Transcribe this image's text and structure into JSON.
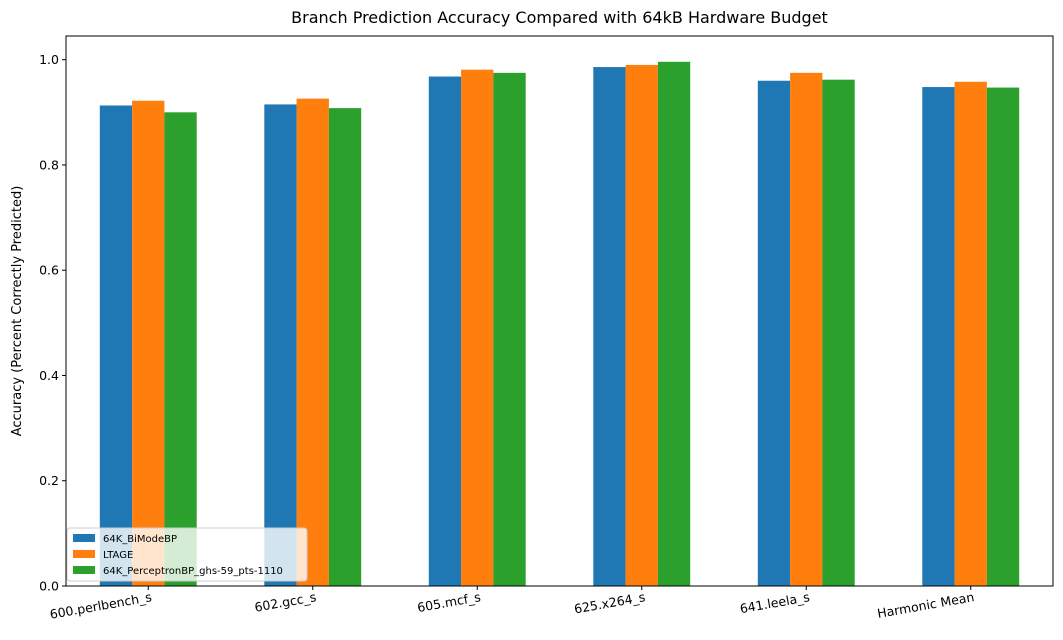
{
  "chart_data": {
    "type": "bar",
    "title": "Branch Prediction Accuracy Compared with 64kB Hardware Budget",
    "xlabel": "",
    "ylabel": "Accuracy (Percent Correctly Predicted)",
    "ylim": [
      0,
      1.045
    ],
    "yticks": [
      "0.0",
      "0.2",
      "0.4",
      "0.6",
      "0.8",
      "1.0"
    ],
    "categories": [
      "600.perlbench_s",
      "602.gcc_s",
      "605.mcf_s",
      "625.x264_s",
      "641.leela_s",
      "Harmonic Mean"
    ],
    "series": [
      {
        "name": "64K_BiModeBP",
        "color": "#1f77b4",
        "values": [
          0.913,
          0.915,
          0.968,
          0.986,
          0.96,
          0.948
        ]
      },
      {
        "name": "LTAGE",
        "color": "#ff7f0e",
        "values": [
          0.922,
          0.926,
          0.981,
          0.99,
          0.975,
          0.958
        ]
      },
      {
        "name": "64K_PerceptronBP_ghs-59_pts-1110",
        "color": "#2ca02c",
        "values": [
          0.9,
          0.908,
          0.975,
          0.996,
          0.962,
          0.947
        ]
      }
    ],
    "grid": false,
    "legend_position": "lower-left"
  }
}
